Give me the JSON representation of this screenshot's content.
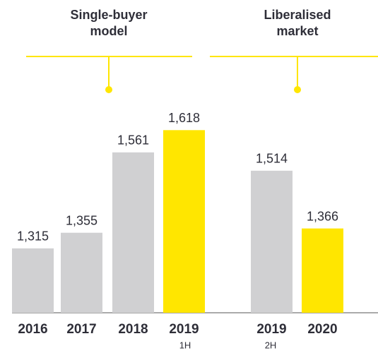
{
  "chart_data": {
    "type": "bar",
    "categories": [
      "2016",
      "2017",
      "2018",
      "2019",
      "2019",
      "2020"
    ],
    "sublabels": [
      null,
      null,
      null,
      "1H",
      "2H",
      null
    ],
    "values": [
      1315,
      1355,
      1561,
      1618,
      1514,
      1366
    ],
    "value_labels": [
      "1,315",
      "1,355",
      "1,561",
      "1,618",
      "1,514",
      "1,366"
    ],
    "colors": [
      "#d0d0d2",
      "#d0d0d2",
      "#d0d0d2",
      "#ffe600",
      "#d0d0d2",
      "#ffe600"
    ],
    "ylim": [
      1150,
      1700
    ],
    "groups": [
      [
        "Single-buyer",
        "model"
      ],
      [
        "Liberalised",
        "market"
      ]
    ]
  }
}
